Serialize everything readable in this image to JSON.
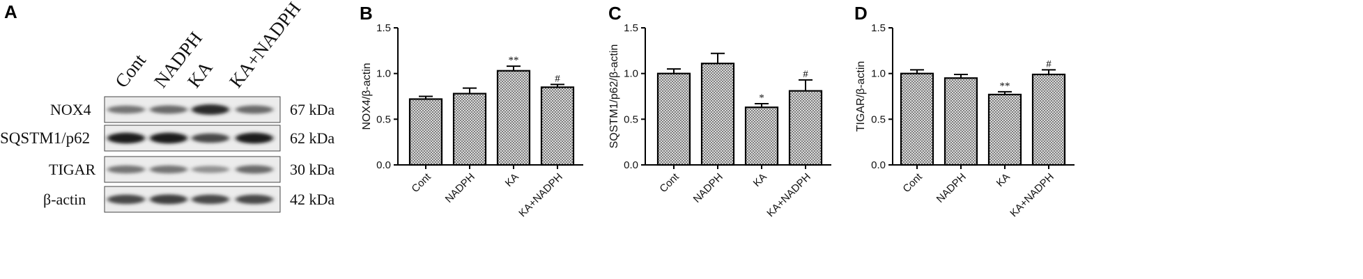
{
  "panel_a": {
    "letter": "A",
    "lanes": [
      "Cont",
      "NADPH",
      "KA",
      "KA+NADPH"
    ],
    "rows": [
      {
        "protein": "NOX4",
        "size": "67 kDa",
        "intensity": [
          0.55,
          0.6,
          0.9,
          0.6
        ]
      },
      {
        "protein": "SQSTM1/p62",
        "size": "62 kDa",
        "intensity": [
          0.95,
          0.95,
          0.75,
          0.95
        ]
      },
      {
        "protein": "TIGAR",
        "size": "30 kDa",
        "intensity": [
          0.55,
          0.55,
          0.42,
          0.6
        ]
      },
      {
        "protein": "β-actin",
        "size": "42 kDa",
        "intensity": [
          0.75,
          0.8,
          0.75,
          0.75
        ]
      }
    ]
  },
  "chart_data": [
    {
      "panel": "B",
      "type": "bar",
      "ylabel": "NOX4/β-actin",
      "categories": [
        "Cont",
        "NADPH",
        "KA",
        "KA+NADPH"
      ],
      "values": [
        0.72,
        0.78,
        1.03,
        0.85
      ],
      "errors": [
        0.03,
        0.06,
        0.05,
        0.03
      ],
      "significance": [
        "",
        "",
        "**",
        "#"
      ],
      "ylim": [
        0,
        1.5
      ],
      "yticks": [
        "0.0",
        "0.5",
        "1.0",
        "1.5"
      ]
    },
    {
      "panel": "C",
      "type": "bar",
      "ylabel": "SQSTM1/p62/β-actin",
      "categories": [
        "Cont",
        "NADPH",
        "KA",
        "KA+NADPH"
      ],
      "values": [
        1.0,
        1.11,
        0.63,
        0.81
      ],
      "errors": [
        0.05,
        0.11,
        0.04,
        0.12
      ],
      "significance": [
        "",
        "",
        "*",
        "#"
      ],
      "ylim": [
        0,
        1.5
      ],
      "yticks": [
        "0.0",
        "0.5",
        "1.0",
        "1.5"
      ]
    },
    {
      "panel": "D",
      "type": "bar",
      "ylabel": "TIGAR/β-actin",
      "categories": [
        "Cont",
        "NADPH",
        "KA",
        "KA+NADPH"
      ],
      "values": [
        1.0,
        0.95,
        0.77,
        0.99
      ],
      "errors": [
        0.04,
        0.04,
        0.03,
        0.05
      ],
      "significance": [
        "",
        "",
        "**",
        "#"
      ],
      "ylim": [
        0,
        1.5
      ],
      "yticks": [
        "0.0",
        "0.5",
        "1.0",
        "1.5"
      ]
    }
  ],
  "colors": {
    "bar_fill_bg": "#d9d9d9",
    "bar_dots": "#4a4a4a",
    "axis": "#000000",
    "band": "#1a1a1a"
  }
}
